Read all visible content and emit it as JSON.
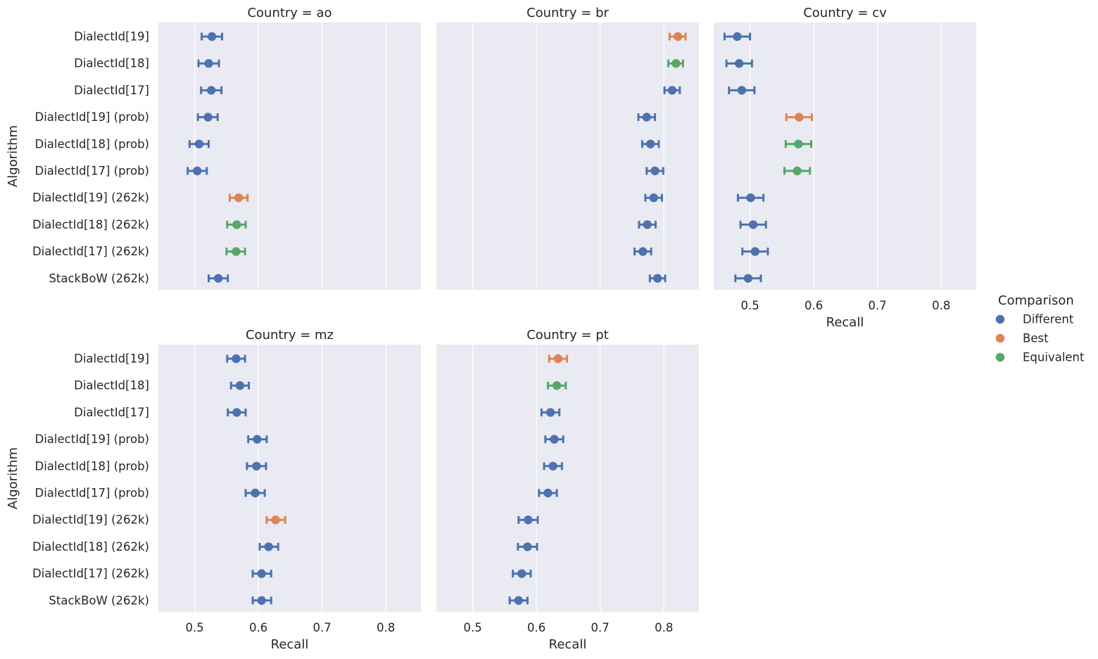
{
  "chart_data": {
    "type": "scatter",
    "kind": "point plot with 95% confidence intervals, faceted by country",
    "col_wrap": 3,
    "facet_label_prefix": "Country = ",
    "ylabel": "Algorithm",
    "xlabel": "Recall",
    "xlim": [
      0.443,
      0.855
    ],
    "xticks": [
      0.5,
      0.6,
      0.7,
      0.8
    ],
    "xtick_labels": [
      "0.5",
      "0.6",
      "0.7",
      "0.8"
    ],
    "categories": [
      "DialectId[19]",
      "DialectId[18]",
      "DialectId[17]",
      "DialectId[19] (prob)",
      "DialectId[18] (prob)",
      "DialectId[17] (prob)",
      "DialectId[19] (262k)",
      "DialectId[18] (262k)",
      "DialectId[17] (262k)",
      "StackBoW (262k)"
    ],
    "legend": {
      "title": "Comparison",
      "placement": "right",
      "entries": [
        {
          "name": "Different",
          "color": "#4c72b0"
        },
        {
          "name": "Best",
          "color": "#dd8452"
        },
        {
          "name": "Equivalent",
          "color": "#55a868"
        }
      ]
    },
    "panels": [
      {
        "country": "ao",
        "points": [
          {
            "mean": 0.527,
            "lo": 0.511,
            "hi": 0.543,
            "comparison": "Different"
          },
          {
            "mean": 0.522,
            "lo": 0.506,
            "hi": 0.538,
            "comparison": "Different"
          },
          {
            "mean": 0.526,
            "lo": 0.51,
            "hi": 0.542,
            "comparison": "Different"
          },
          {
            "mean": 0.521,
            "lo": 0.505,
            "hi": 0.536,
            "comparison": "Different"
          },
          {
            "mean": 0.507,
            "lo": 0.492,
            "hi": 0.522,
            "comparison": "Different"
          },
          {
            "mean": 0.504,
            "lo": 0.489,
            "hi": 0.519,
            "comparison": "Different"
          },
          {
            "mean": 0.569,
            "lo": 0.555,
            "hi": 0.583,
            "comparison": "Best"
          },
          {
            "mean": 0.566,
            "lo": 0.551,
            "hi": 0.58,
            "comparison": "Equivalent"
          },
          {
            "mean": 0.565,
            "lo": 0.55,
            "hi": 0.579,
            "comparison": "Equivalent"
          },
          {
            "mean": 0.537,
            "lo": 0.522,
            "hi": 0.552,
            "comparison": "Different"
          }
        ]
      },
      {
        "country": "br",
        "points": [
          {
            "mean": 0.822,
            "lo": 0.809,
            "hi": 0.834,
            "comparison": "Best"
          },
          {
            "mean": 0.819,
            "lo": 0.807,
            "hi": 0.83,
            "comparison": "Equivalent"
          },
          {
            "mean": 0.813,
            "lo": 0.801,
            "hi": 0.825,
            "comparison": "Different"
          },
          {
            "mean": 0.773,
            "lo": 0.76,
            "hi": 0.786,
            "comparison": "Different"
          },
          {
            "mean": 0.779,
            "lo": 0.766,
            "hi": 0.792,
            "comparison": "Different"
          },
          {
            "mean": 0.786,
            "lo": 0.773,
            "hi": 0.799,
            "comparison": "Different"
          },
          {
            "mean": 0.784,
            "lo": 0.771,
            "hi": 0.797,
            "comparison": "Different"
          },
          {
            "mean": 0.774,
            "lo": 0.761,
            "hi": 0.787,
            "comparison": "Different"
          },
          {
            "mean": 0.767,
            "lo": 0.754,
            "hi": 0.78,
            "comparison": "Different"
          },
          {
            "mean": 0.79,
            "lo": 0.778,
            "hi": 0.802,
            "comparison": "Different"
          }
        ]
      },
      {
        "country": "cv",
        "points": [
          {
            "mean": 0.48,
            "lo": 0.46,
            "hi": 0.5,
            "comparison": "Different"
          },
          {
            "mean": 0.483,
            "lo": 0.463,
            "hi": 0.503,
            "comparison": "Different"
          },
          {
            "mean": 0.487,
            "lo": 0.467,
            "hi": 0.507,
            "comparison": "Different"
          },
          {
            "mean": 0.577,
            "lo": 0.557,
            "hi": 0.597,
            "comparison": "Best"
          },
          {
            "mean": 0.576,
            "lo": 0.556,
            "hi": 0.596,
            "comparison": "Equivalent"
          },
          {
            "mean": 0.574,
            "lo": 0.554,
            "hi": 0.594,
            "comparison": "Equivalent"
          },
          {
            "mean": 0.501,
            "lo": 0.481,
            "hi": 0.521,
            "comparison": "Different"
          },
          {
            "mean": 0.505,
            "lo": 0.485,
            "hi": 0.525,
            "comparison": "Different"
          },
          {
            "mean": 0.508,
            "lo": 0.488,
            "hi": 0.528,
            "comparison": "Different"
          },
          {
            "mean": 0.497,
            "lo": 0.477,
            "hi": 0.517,
            "comparison": "Different"
          }
        ]
      },
      {
        "country": "mz",
        "points": [
          {
            "mean": 0.565,
            "lo": 0.551,
            "hi": 0.579,
            "comparison": "Different"
          },
          {
            "mean": 0.571,
            "lo": 0.557,
            "hi": 0.585,
            "comparison": "Different"
          },
          {
            "mean": 0.566,
            "lo": 0.552,
            "hi": 0.58,
            "comparison": "Different"
          },
          {
            "mean": 0.598,
            "lo": 0.584,
            "hi": 0.613,
            "comparison": "Different"
          },
          {
            "mean": 0.597,
            "lo": 0.582,
            "hi": 0.612,
            "comparison": "Different"
          },
          {
            "mean": 0.595,
            "lo": 0.58,
            "hi": 0.61,
            "comparison": "Different"
          },
          {
            "mean": 0.627,
            "lo": 0.613,
            "hi": 0.642,
            "comparison": "Best"
          },
          {
            "mean": 0.616,
            "lo": 0.602,
            "hi": 0.631,
            "comparison": "Different"
          },
          {
            "mean": 0.605,
            "lo": 0.591,
            "hi": 0.62,
            "comparison": "Different"
          },
          {
            "mean": 0.605,
            "lo": 0.591,
            "hi": 0.62,
            "comparison": "Different"
          }
        ]
      },
      {
        "country": "pt",
        "points": [
          {
            "mean": 0.634,
            "lo": 0.62,
            "hi": 0.648,
            "comparison": "Best"
          },
          {
            "mean": 0.632,
            "lo": 0.618,
            "hi": 0.646,
            "comparison": "Equivalent"
          },
          {
            "mean": 0.622,
            "lo": 0.608,
            "hi": 0.636,
            "comparison": "Different"
          },
          {
            "mean": 0.628,
            "lo": 0.614,
            "hi": 0.642,
            "comparison": "Different"
          },
          {
            "mean": 0.626,
            "lo": 0.612,
            "hi": 0.64,
            "comparison": "Different"
          },
          {
            "mean": 0.618,
            "lo": 0.604,
            "hi": 0.632,
            "comparison": "Different"
          },
          {
            "mean": 0.587,
            "lo": 0.572,
            "hi": 0.602,
            "comparison": "Different"
          },
          {
            "mean": 0.586,
            "lo": 0.571,
            "hi": 0.601,
            "comparison": "Different"
          },
          {
            "mean": 0.577,
            "lo": 0.563,
            "hi": 0.591,
            "comparison": "Different"
          },
          {
            "mean": 0.572,
            "lo": 0.558,
            "hi": 0.586,
            "comparison": "Different"
          }
        ]
      }
    ]
  }
}
